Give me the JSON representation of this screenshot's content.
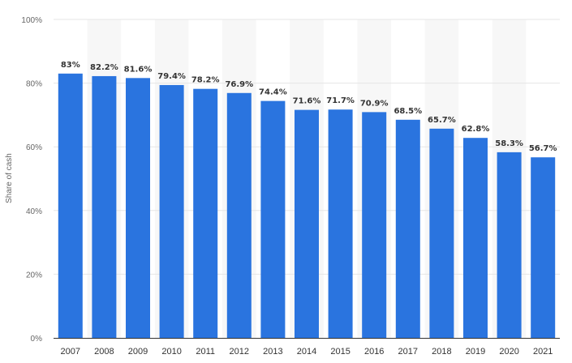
{
  "chart_data": {
    "type": "bar",
    "title": "",
    "xlabel": "",
    "ylabel": "Share of cash",
    "categories": [
      "2007",
      "2008",
      "2009",
      "2010",
      "2011",
      "2012",
      "2013",
      "2014",
      "2015",
      "2016",
      "2017",
      "2018",
      "2019",
      "2020",
      "2021"
    ],
    "values": [
      83,
      82.2,
      81.6,
      79.4,
      78.2,
      76.9,
      74.4,
      71.6,
      71.7,
      70.9,
      68.5,
      65.7,
      62.8,
      58.3,
      56.7
    ],
    "value_labels": [
      "83%",
      "82.2%",
      "81.6%",
      "79.4%",
      "78.2%",
      "76.9%",
      "74.4%",
      "71.6%",
      "71.7%",
      "70.9%",
      "68.5%",
      "65.7%",
      "62.8%",
      "58.3%",
      "56.7%"
    ],
    "ylim": [
      0,
      100
    ],
    "yticks": [
      0,
      20,
      40,
      60,
      80,
      100
    ],
    "ytick_labels": [
      "0%",
      "20%",
      "40%",
      "60%",
      "80%",
      "100%"
    ],
    "grid": true,
    "legend": "none",
    "colors": {
      "bar": "#2a74df",
      "grid": "#e6e6e6",
      "band": "#f7f7f7",
      "axis": "#333333"
    }
  }
}
